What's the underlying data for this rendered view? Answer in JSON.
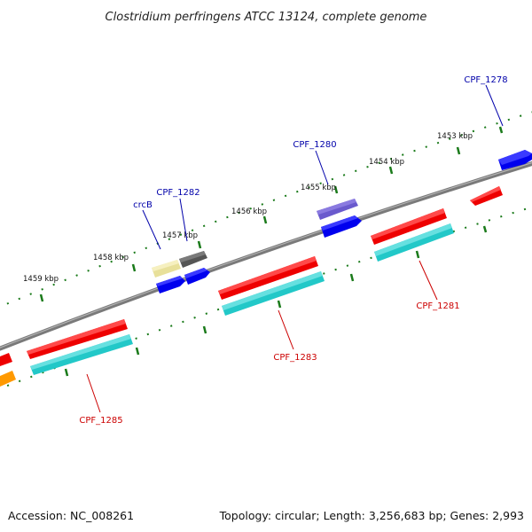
{
  "title": "Clostridium perfringens ATCC 13124, complete genome",
  "footer": {
    "accession": "Accession: NC_008261",
    "summary": "Topology: circular; Length: 3,256,683 bp; Genes: 2,993"
  },
  "scale_labels": [
    "1453 kbp",
    "1454 kbp",
    "1455 kbp",
    "1456 kbp",
    "1457 kbp",
    "1458 kbp",
    "1459 kbp"
  ],
  "gene_labels_top": [
    "CPF_1278",
    "CPF_1280",
    "CPF_1282",
    "crcB"
  ],
  "gene_labels_bottom": [
    "CPF_1281",
    "CPF_1283",
    "CPF_1285"
  ],
  "colors": {
    "backbone": "#7a7a7a",
    "tick": "#1a7a1a",
    "cds": "#0000ee",
    "gene_rna_like": "#ee0000",
    "cog": "#22c8c8",
    "highlight_purple": "#6a5acd",
    "crcB": "#e8e09a",
    "dark_gray": "#555555",
    "orange": "#ff9900"
  }
}
